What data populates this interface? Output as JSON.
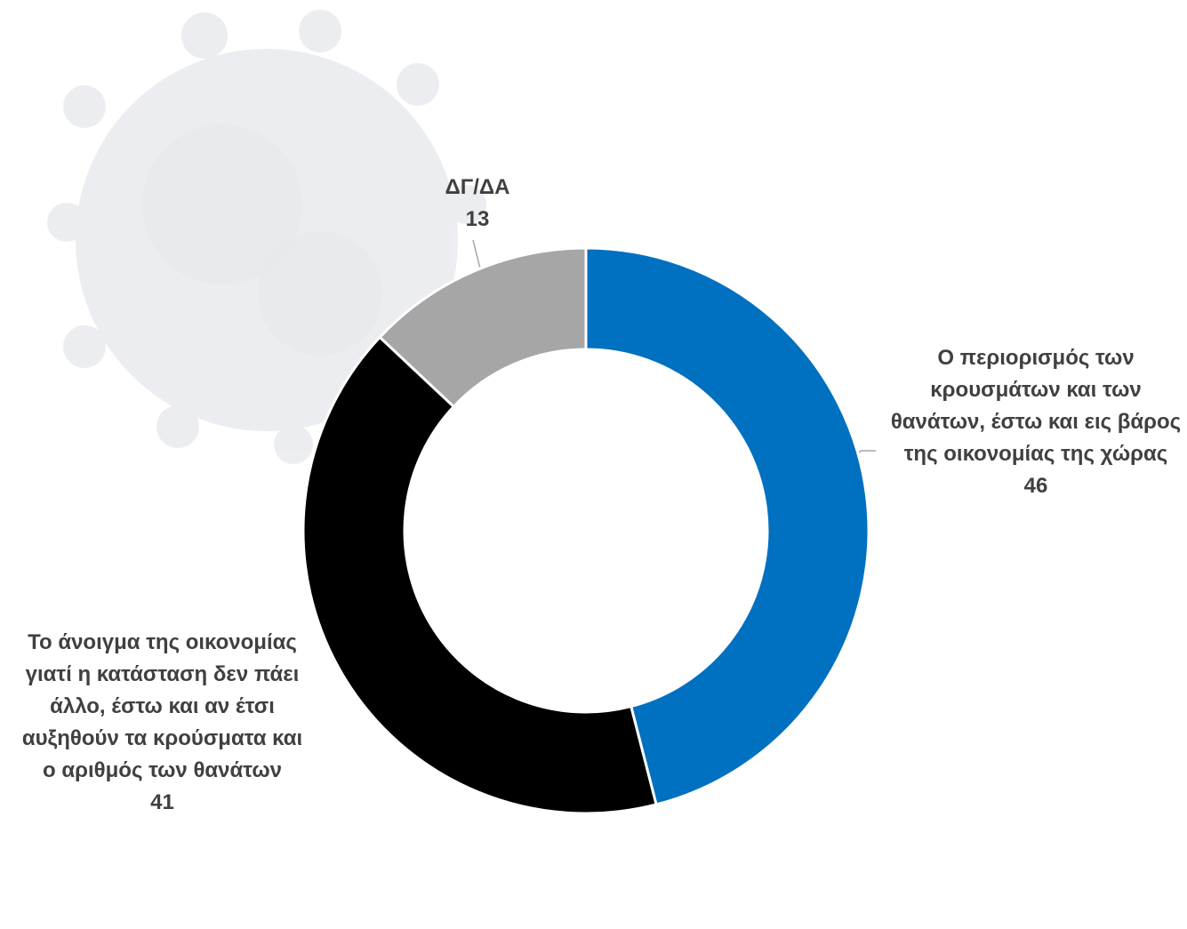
{
  "chart_data": {
    "type": "donut",
    "categories": [
      "Ο περιορισμός των κρουσμάτων και των θανάτων, έστω και εις βάρος της οικονομίας της χώρας",
      "Το άνοιγμα της οικονομίας γιατί η κατάσταση δεν πάει άλλο, έστω και αν έτσι αυξηθούν τα κρούσματα και ο αριθμός των θανάτων",
      "ΔΓ/ΔΑ"
    ],
    "values": [
      46,
      41,
      13
    ],
    "colors": [
      "#0070c0",
      "#000000",
      "#a6a6a6"
    ]
  }
}
